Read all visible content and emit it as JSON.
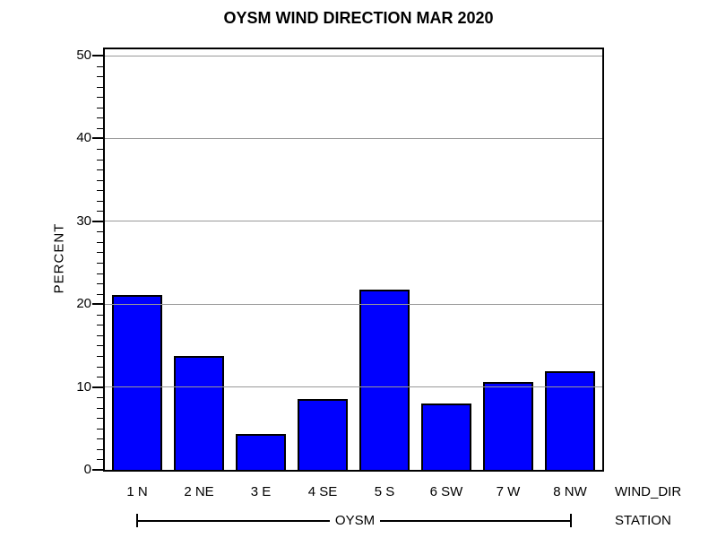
{
  "title": "OYSM WIND DIRECTION MAR 2020",
  "chart_data": {
    "type": "bar",
    "title": "OYSM WIND DIRECTION MAR 2020",
    "categories": [
      "1 N",
      "2 NE",
      "3 E",
      "4 SE",
      "5 S",
      "6 SW",
      "7 W",
      "8 NW"
    ],
    "values": [
      21.1,
      13.7,
      4.3,
      8.5,
      21.7,
      8.0,
      10.6,
      11.9
    ],
    "xlabel": "WIND_DIR",
    "ylabel": "PERCENT",
    "group_axis_label": "STATION",
    "group_value": "OYSM",
    "ylim": [
      0,
      50
    ],
    "yticks": [
      0,
      10,
      20,
      30,
      40,
      50
    ],
    "minor_tick_step": 1.25,
    "grid": true,
    "gridlines_over_bars": true,
    "legend": "none",
    "colors": {
      "bar_fill": "#0000ff",
      "bar_border": "#000000",
      "gridline": "#999999",
      "axis": "#000000",
      "text": "#000000",
      "background": "#ffffff"
    }
  }
}
